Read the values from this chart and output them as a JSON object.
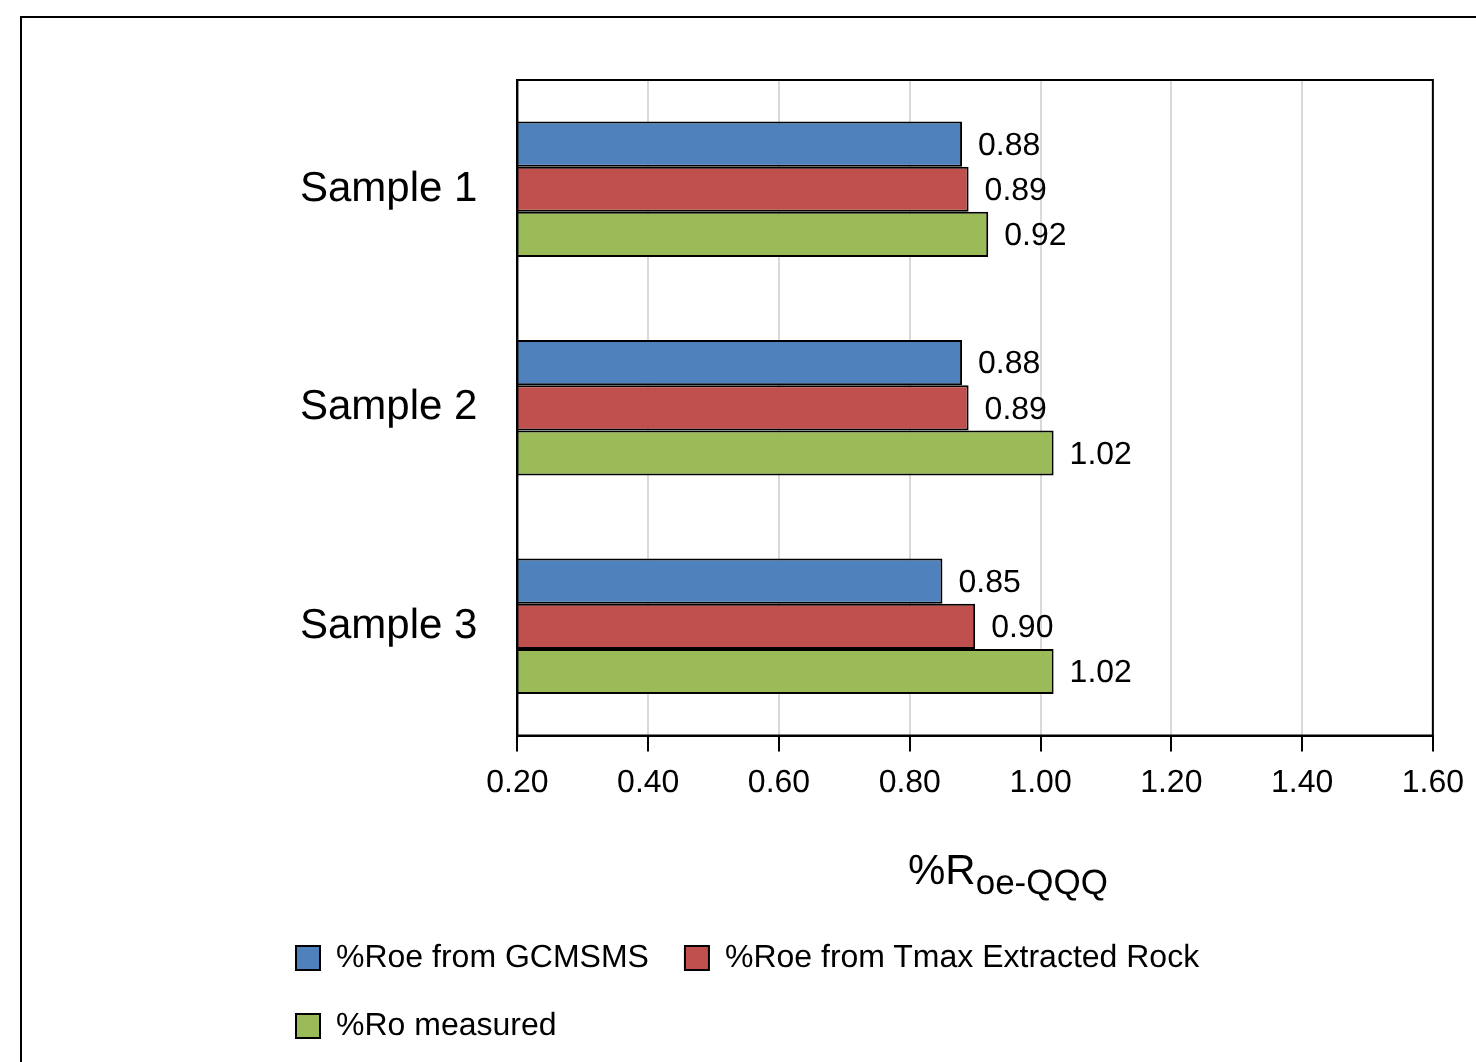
{
  "chart_data": {
    "type": "bar",
    "orientation": "horizontal",
    "xlabel": "%R$_{oe-QQQ}$",
    "categories": [
      "Sample 1",
      "Sample 2",
      "Sample 3"
    ],
    "series": [
      {
        "name": "%Roe from GCMSMS",
        "color": "#4f81bd",
        "values": [
          0.88,
          0.88,
          0.85
        ],
        "value_labels": [
          "0.88",
          "0.88",
          "0.85"
        ]
      },
      {
        "name": "%Roe from Tmax Extracted Rock",
        "color": "#c0504d",
        "values": [
          0.89,
          0.89,
          0.9
        ],
        "value_labels": [
          "0.89",
          "0.89",
          "0.90"
        ]
      },
      {
        "name": "%Ro measured",
        "color": "#9bbb59",
        "values": [
          0.92,
          1.02,
          1.02
        ],
        "value_labels": [
          "0.92",
          "1.02",
          "1.02"
        ]
      }
    ],
    "xlim": [
      0.2,
      1.6
    ],
    "xticks": [
      {
        "value": 0.2,
        "label": "0.20"
      },
      {
        "value": 0.4,
        "label": "0.40"
      },
      {
        "value": 0.6,
        "label": "0.60"
      },
      {
        "value": 0.8,
        "label": "0.80"
      },
      {
        "value": 1.0,
        "label": "1.00"
      },
      {
        "value": 1.2,
        "label": "1.20"
      },
      {
        "value": 1.4,
        "label": "1.40"
      },
      {
        "value": 1.6,
        "label": "1.60"
      }
    ],
    "grid": "x",
    "legend": "bottom"
  }
}
